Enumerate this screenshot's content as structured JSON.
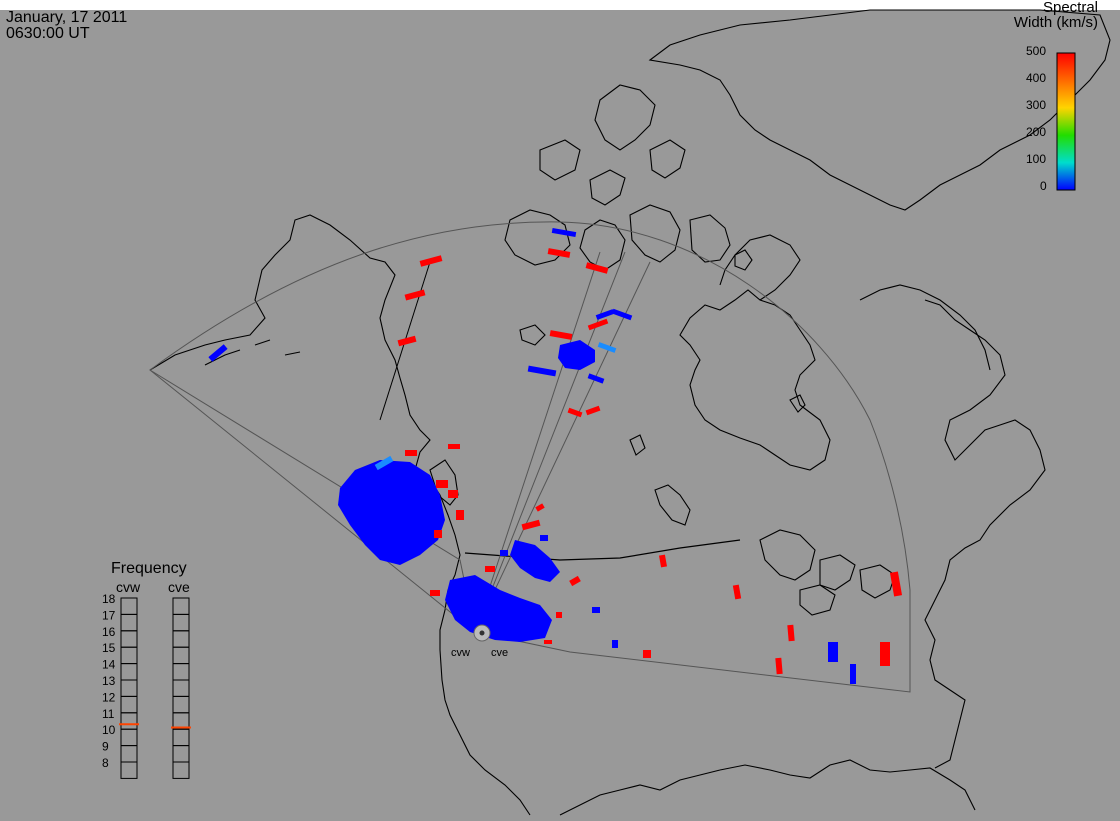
{
  "header": {
    "date": "January, 17 2011",
    "time": "0630:00 UT"
  },
  "colorscale": {
    "title_line1": "Spectral",
    "title_line2": "Width (km/s)",
    "ticks": [
      "500",
      "400",
      "300",
      "200",
      "100",
      "0"
    ],
    "colors": [
      "#ff0000",
      "#ff6a00",
      "#ffd400",
      "#22dd00",
      "#00ddcc",
      "#0000ff"
    ]
  },
  "frequency": {
    "title": "Frequency",
    "radar_left": "cvw",
    "radar_right": "cve",
    "labels": [
      "18",
      "17",
      "16",
      "15",
      "14",
      "13",
      "12",
      "11",
      "10",
      "9",
      "8"
    ],
    "cvw_level": 10.8,
    "cve_level": 10.6,
    "marker_color": "#ff4400"
  },
  "sites": {
    "west": "cvw",
    "east": "cve"
  },
  "colors": {
    "map_background": "#999999",
    "coastline": "#000000",
    "fov_outline": "#555555",
    "low_width": "#0000ff",
    "high_width": "#ff0000",
    "mid_width": "#1a8cff"
  }
}
